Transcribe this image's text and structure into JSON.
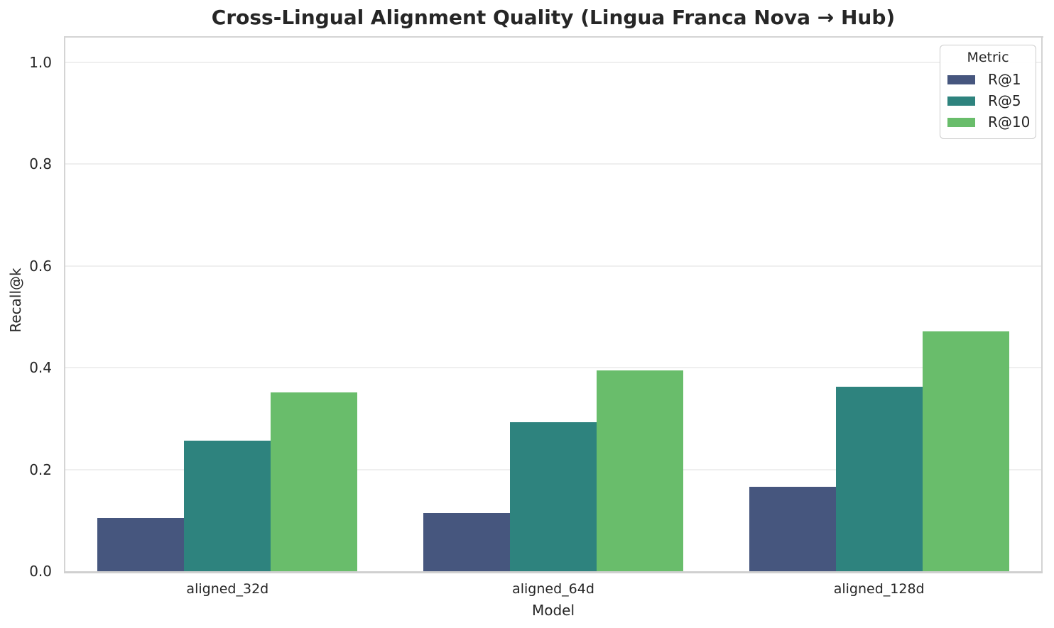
{
  "chart_data": {
    "type": "bar",
    "title": "Cross-Lingual Alignment Quality (Lingua Franca Nova → Hub)",
    "xlabel": "Model",
    "ylabel": "Recall@k",
    "categories": [
      "aligned_32d",
      "aligned_64d",
      "aligned_128d"
    ],
    "series": [
      {
        "name": "R@1",
        "color": "#46567e",
        "values": [
          0.104,
          0.115,
          0.166
        ]
      },
      {
        "name": "R@5",
        "color": "#2e837e",
        "values": [
          0.256,
          0.293,
          0.362
        ]
      },
      {
        "name": "R@10",
        "color": "#69bd6b",
        "values": [
          0.351,
          0.395,
          0.471
        ]
      }
    ],
    "ylim": [
      0,
      1.05
    ],
    "yticks": [
      0.0,
      0.2,
      0.4,
      0.6,
      0.8,
      1.0
    ],
    "ytick_labels": [
      "0.0",
      "0.2",
      "0.4",
      "0.6",
      "0.8",
      "1.0"
    ],
    "legend": {
      "title": "Metric",
      "position": "upper right"
    },
    "grid": "horizontal"
  }
}
